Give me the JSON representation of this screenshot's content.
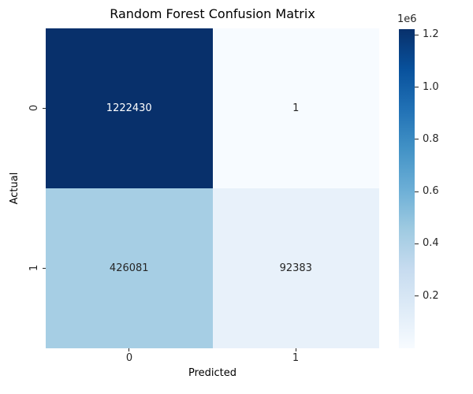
{
  "figure": {
    "background": "#ffffff",
    "text_color": "#000000",
    "tick_color": "#262626"
  },
  "chart_data": {
    "type": "heatmap",
    "title": "Random Forest Confusion Matrix",
    "xlabel": "Predicted",
    "ylabel": "Actual",
    "x_tick_labels": [
      "0",
      "1"
    ],
    "y_tick_labels": [
      "0",
      "1"
    ],
    "matrix": [
      [
        1222430,
        1
      ],
      [
        426081,
        92383
      ]
    ],
    "colormap": "Blues",
    "vmin": 1,
    "vmax": 1222430,
    "grid": false,
    "cells": [
      {
        "row": "0",
        "col": "0",
        "label": "1222430",
        "bg": "#08306b",
        "text": "#ffffff"
      },
      {
        "row": "0",
        "col": "1",
        "label": "1",
        "bg": "#f7fbff",
        "text": "#262626"
      },
      {
        "row": "1",
        "col": "0",
        "label": "426081",
        "bg": "#a6cee4",
        "text": "#262626"
      },
      {
        "row": "1",
        "col": "1",
        "label": "92383",
        "bg": "#e8f1fa",
        "text": "#262626"
      }
    ],
    "colorbar": {
      "position": "right",
      "offset_label": "1e6",
      "ticks": [
        {
          "value": 200000,
          "label": "0.2"
        },
        {
          "value": 400000,
          "label": "0.4"
        },
        {
          "value": 600000,
          "label": "0.6"
        },
        {
          "value": 800000,
          "label": "0.8"
        },
        {
          "value": 1000000,
          "label": "1.0"
        },
        {
          "value": 1200000,
          "label": "1.2"
        }
      ],
      "gradient_stops": [
        "#f7fbff",
        "#deebf7",
        "#c6dbef",
        "#9ecae1",
        "#6baed6",
        "#4292c6",
        "#2171b5",
        "#08519c",
        "#08306b"
      ]
    }
  }
}
